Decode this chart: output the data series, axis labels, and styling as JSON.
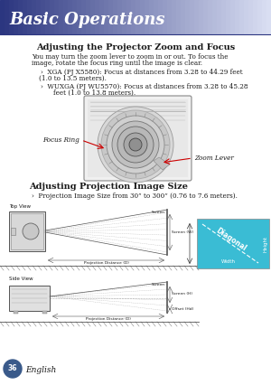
{
  "bg_color": "#ffffff",
  "header_bg_left": "#2b3580",
  "header_bg_right": "#c8cce8",
  "header_text": "Basic Operations",
  "header_text_color": "#ffffff",
  "page_bg": "#ffffff",
  "title1": "Adjusting the Projector Zoom and Focus",
  "body1_line1": "You may turn the zoom lever to zoom in or out. To focus the",
  "body1_line2": "image, rotate the focus ring until the image is clear.",
  "bullet1_line1": "›  XGA (PJ X5580): Focus at distances from 3.28 to 44.29 feet",
  "bullet1_line2": "(1.0 to 13.5 meters).",
  "bullet2_line1": "›  WUXGA (PJ WU5570): Focus at distances from 3.28 to 45.28",
  "bullet2_line2": "feet (1.0 to 13.8 meters).",
  "label_focus": "Focus Ring",
  "label_zoom": "Zoom Lever",
  "title2": "Adjusting Projection Image Size",
  "bullet3": "›  Projection Image Size from 30” to 300” (0.76 to 7.6 meters).",
  "label_topview": "Top View",
  "label_sideview": "Side View",
  "label_screen_w": "Screen (W)",
  "label_screen_h": "Screen (H)",
  "label_offset": "Offset (Hd)",
  "label_proj_dist1": "Projection Distance (D)",
  "label_proj_dist2": "Projection Distance (D)",
  "label_screen1": "Screen",
  "label_screen2": "Screen",
  "label_diagonal": "Diagonal",
  "label_width": "Width",
  "label_height": "Height",
  "cyan_box_color": "#3abcd4",
  "page_number": "36",
  "footer_text": "English",
  "arrow_color": "#cc0000",
  "text_color": "#1a1a1a",
  "diagram_line_color": "#555555"
}
